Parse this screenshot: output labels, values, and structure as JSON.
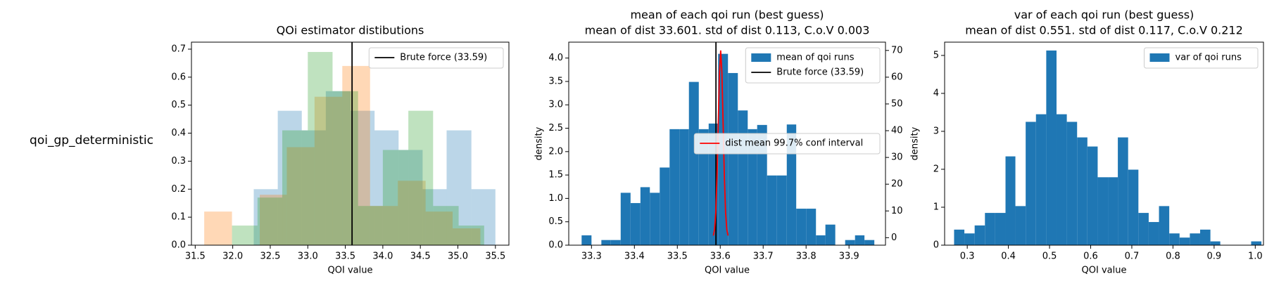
{
  "chart_data": [
    {
      "type": "histogram",
      "row_label": "qoi_gp_deterministic",
      "title": "QOi estimator distibutions",
      "xlabel": "QOI value",
      "xlim": [
        31.45,
        35.68
      ],
      "ylim": [
        0,
        0.725
      ],
      "xticks": [
        {
          "value": 31.5,
          "label": "31.5"
        },
        {
          "value": 32.0,
          "label": "32.0"
        },
        {
          "value": 32.5,
          "label": "32.5"
        },
        {
          "value": 33.0,
          "label": "33.0"
        },
        {
          "value": 33.5,
          "label": "33.5"
        },
        {
          "value": 34.0,
          "label": "34.0"
        },
        {
          "value": 34.5,
          "label": "34.5"
        },
        {
          "value": 35.0,
          "label": "35.0"
        },
        {
          "value": 35.5,
          "label": "35.5"
        }
      ],
      "yticks": [
        {
          "value": 0,
          "label": "0.0"
        },
        {
          "value": 0.1,
          "label": "0.1"
        },
        {
          "value": 0.2,
          "label": "0.2"
        },
        {
          "value": 0.3,
          "label": "0.3"
        },
        {
          "value": 0.4,
          "label": "0.4"
        },
        {
          "value": 0.5,
          "label": "0.5"
        },
        {
          "value": 0.6,
          "label": "0.6"
        },
        {
          "value": 0.7,
          "label": "0.7"
        }
      ],
      "legend_loc": "upper right",
      "series": [
        {
          "color": "#1f77b4",
          "alpha": 0.3,
          "bins": [
            32.28,
            32.6,
            32.92,
            33.24,
            33.57,
            33.89,
            34.21,
            34.53,
            34.85,
            35.18,
            35.5
          ],
          "values": [
            0.2,
            0.48,
            0.41,
            0.55,
            0.48,
            0.41,
            0.34,
            0.2,
            0.41,
            0.2
          ]
        },
        {
          "color": "#ff7f0e",
          "alpha": 0.3,
          "bins": [
            31.62,
            31.99,
            32.36,
            32.72,
            33.09,
            33.46,
            33.83,
            34.2,
            34.57,
            34.93,
            35.3
          ],
          "values": [
            0.12,
            0,
            0.18,
            0.35,
            0.53,
            0.64,
            0.14,
            0.23,
            0.12,
            0.06
          ]
        },
        {
          "color": "#2ca02c",
          "alpha": 0.3,
          "bins": [
            31.99,
            32.33,
            32.66,
            33.0,
            33.33,
            33.67,
            34.0,
            34.34,
            34.67,
            35.01,
            35.35
          ],
          "values": [
            0.07,
            0.17,
            0.41,
            0.69,
            0.55,
            0.14,
            0.34,
            0.48,
            0.14,
            0.07
          ]
        }
      ],
      "vlines": [
        {
          "x": 33.59,
          "color": "#000000",
          "label": "Brute force (33.59)"
        }
      ]
    },
    {
      "type": "histogram",
      "title": "mean of each qoi run (best guess)",
      "subtitle": "mean of dist 33.601. std of dist 0.113, C.o.V 0.003",
      "xlabel": "QOI value",
      "ylabel": "density",
      "xlim": [
        33.247,
        33.985
      ],
      "ylim": [
        0,
        4.34
      ],
      "y2lim": [
        -2.8,
        73.1
      ],
      "xticks": [
        33.3,
        33.4,
        33.5,
        33.6,
        33.7,
        33.8,
        33.9
      ],
      "yticks": [
        {
          "value": 0,
          "label": "0.0"
        },
        {
          "value": 0.5,
          "label": "0.5"
        },
        {
          "value": 1.0,
          "label": "1.0"
        },
        {
          "value": 1.5,
          "label": "1.5"
        },
        {
          "value": 2.0,
          "label": "2.0"
        },
        {
          "value": 2.5,
          "label": "2.5"
        },
        {
          "value": 3.0,
          "label": "3.0"
        },
        {
          "value": 3.5,
          "label": "3.5"
        },
        {
          "value": 4.0,
          "label": "4.0"
        }
      ],
      "y2ticks": [
        0,
        10,
        20,
        30,
        40,
        50,
        60,
        70
      ],
      "legend_loc": "upper right",
      "legend2_loc": "center right",
      "series": [
        {
          "name": "mean of qoi runs",
          "color": "#1f77b4",
          "bins": [
            33.277,
            33.3,
            33.323,
            33.345,
            33.368,
            33.391,
            33.414,
            33.436,
            33.459,
            33.482,
            33.505,
            33.527,
            33.55,
            33.573,
            33.595,
            33.618,
            33.641,
            33.664,
            33.686,
            33.709,
            33.732,
            33.755,
            33.777,
            33.8,
            33.823,
            33.845,
            33.868,
            33.891,
            33.914,
            33.936,
            33.959
          ],
          "values": [
            0.21,
            0,
            0.11,
            0.11,
            1.12,
            0.9,
            1.24,
            1.12,
            1.66,
            2.48,
            2.48,
            3.49,
            2.48,
            2.6,
            4.09,
            3.68,
            2.88,
            2.48,
            2.57,
            1.49,
            1.49,
            2.58,
            0.78,
            0.78,
            0.21,
            0.44,
            0,
            0.11,
            0.21,
            0.11
          ]
        },
        {
          "name": "dist mean 99.7% conf interval",
          "type": "line",
          "axis": "y2",
          "color": "#ff0000",
          "x": [
            33.5839,
            33.5868,
            33.5896,
            33.5925,
            33.5953,
            33.5982,
            33.601,
            33.6039,
            33.6067,
            33.6096,
            33.6124,
            33.6153,
            33.6181
          ],
          "values": [
            0.78,
            3.07,
            9.47,
            22.76,
            42.46,
            61.77,
            70,
            61.77,
            42.46,
            22.76,
            9.47,
            3.07,
            0.78
          ]
        }
      ],
      "vlines": [
        {
          "x": 33.59,
          "color": "#000000",
          "label": "Brute force (33.59)"
        }
      ]
    },
    {
      "type": "histogram",
      "title": "var of each qoi run (best guess)",
      "subtitle": "mean of dist 0.551. std of dist 0.117, C.o.V 0.212",
      "xlabel": "QOI value",
      "ylabel": "density",
      "xlim": [
        0.245,
        1.02
      ],
      "ylim": [
        0,
        5.35
      ],
      "xticks": [
        0.3,
        0.4,
        0.5,
        0.6,
        0.7,
        0.8,
        0.9,
        {
          "value": 1.0,
          "label": "1.0"
        }
      ],
      "yticks": [
        0,
        1,
        2,
        3,
        4,
        5
      ],
      "legend_loc": "upper right",
      "series": [
        {
          "name": "var of qoi runs",
          "color": "#1f77b4",
          "bins": [
            0.268,
            0.293,
            0.318,
            0.343,
            0.368,
            0.393,
            0.417,
            0.442,
            0.467,
            0.492,
            0.517,
            0.542,
            0.567,
            0.592,
            0.617,
            0.642,
            0.666,
            0.691,
            0.716,
            0.741,
            0.766,
            0.791,
            0.816,
            0.841,
            0.866,
            0.891,
            0.915,
            0.94,
            0.965,
            0.99,
            1.015
          ],
          "values": [
            0.41,
            0.31,
            0.52,
            0.85,
            0.85,
            2.34,
            1.03,
            3.25,
            3.45,
            5.13,
            3.45,
            3.25,
            2.84,
            2.6,
            1.79,
            1.79,
            2.84,
            1.99,
            0.85,
            0.61,
            1.03,
            0.31,
            0.2,
            0.31,
            0.41,
            0.1,
            0,
            0,
            0,
            0.1
          ]
        }
      ]
    }
  ]
}
